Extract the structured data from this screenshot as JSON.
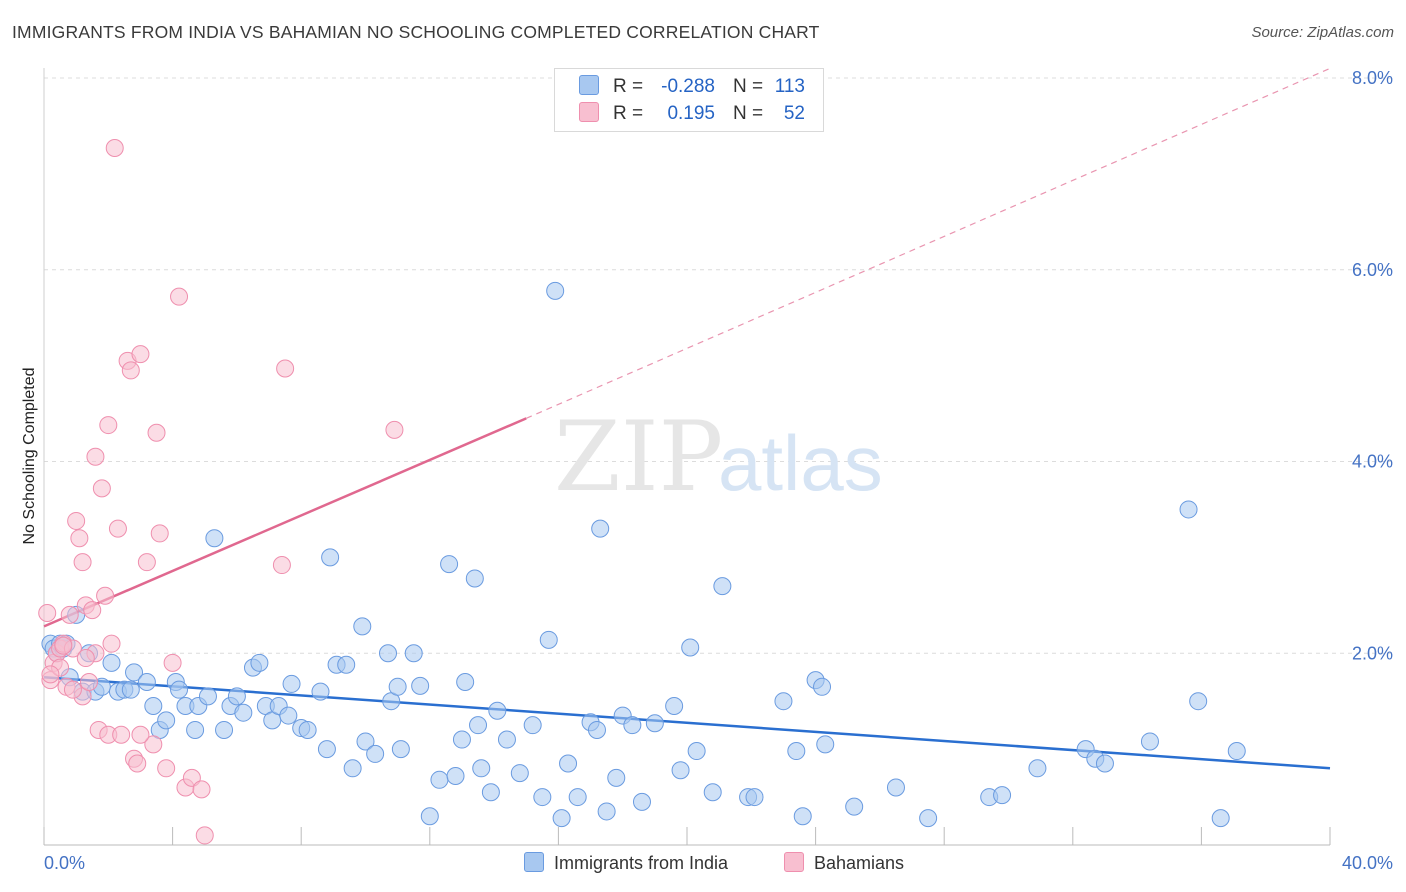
{
  "header": {
    "title": "IMMIGRANTS FROM INDIA VS BAHAMIAN NO SCHOOLING COMPLETED CORRELATION CHART",
    "source": "Source: ZipAtlas.com"
  },
  "legend": {
    "rows": [
      {
        "r_label": "R =",
        "r_value": "-0.288",
        "n_label": "N =",
        "n_value": "113"
      },
      {
        "r_label": "R =",
        "r_value": "0.195",
        "n_label": "N =",
        "n_value": "52"
      }
    ]
  },
  "bottom_legend": {
    "india_label": "Immigrants from India",
    "bahamians_label": "Bahamians"
  },
  "watermark": {
    "zip": "ZIP",
    "atlas": "atlas"
  },
  "colors": {
    "india_fill": "#a8c8f0",
    "india_stroke": "#6a9be0",
    "india_line": "#2a6fd0",
    "bahamian_fill": "#f8bfd0",
    "bahamian_stroke": "#ef8fae",
    "bahamian_line": "#e0688f",
    "tick": "#4472c4",
    "grid": "#dcdcdc"
  },
  "chart_data": {
    "type": "scatter",
    "title": "IMMIGRANTS FROM INDIA VS BAHAMIAN NO SCHOOLING COMPLETED CORRELATION CHART",
    "xlabel": "",
    "ylabel": "No Schooling Completed",
    "xlim": [
      0,
      40
    ],
    "ylim": [
      0,
      8
    ],
    "x_tick_labels": [
      "0.0%",
      "40.0%"
    ],
    "y_ticks": [
      2,
      4,
      6,
      8
    ],
    "y_tick_labels": [
      "2.0%",
      "4.0%",
      "6.0%",
      "8.0%"
    ],
    "grid": true,
    "legend_position": "top-center",
    "series": [
      {
        "name": "Immigrants from India",
        "trendline": {
          "x": [
            0,
            40
          ],
          "y": [
            1.75,
            0.8
          ],
          "dashed_extension": false
        },
        "points": [
          [
            0.2,
            2.1
          ],
          [
            0.3,
            2.05
          ],
          [
            0.4,
            2.0
          ],
          [
            0.5,
            2.1
          ],
          [
            0.6,
            2.05
          ],
          [
            0.7,
            2.1
          ],
          [
            0.8,
            1.75
          ],
          [
            1.0,
            2.4
          ],
          [
            1.2,
            1.6
          ],
          [
            1.4,
            2.0
          ],
          [
            1.6,
            1.6
          ],
          [
            1.8,
            1.65
          ],
          [
            2.1,
            1.9
          ],
          [
            2.3,
            1.6
          ],
          [
            2.5,
            1.62
          ],
          [
            2.7,
            1.62
          ],
          [
            2.8,
            1.8
          ],
          [
            3.2,
            1.7
          ],
          [
            3.4,
            1.45
          ],
          [
            3.6,
            1.2
          ],
          [
            3.8,
            1.3
          ],
          [
            4.1,
            1.7
          ],
          [
            4.2,
            1.62
          ],
          [
            4.4,
            1.45
          ],
          [
            4.7,
            1.2
          ],
          [
            4.8,
            1.45
          ],
          [
            5.1,
            1.55
          ],
          [
            5.3,
            3.2
          ],
          [
            5.6,
            1.2
          ],
          [
            5.8,
            1.45
          ],
          [
            6.0,
            1.55
          ],
          [
            6.2,
            1.38
          ],
          [
            6.5,
            1.85
          ],
          [
            6.7,
            1.9
          ],
          [
            6.9,
            1.45
          ],
          [
            7.1,
            1.3
          ],
          [
            7.3,
            1.45
          ],
          [
            7.6,
            1.35
          ],
          [
            7.7,
            1.68
          ],
          [
            8.0,
            1.22
          ],
          [
            8.2,
            1.2
          ],
          [
            8.6,
            1.6
          ],
          [
            8.8,
            1.0
          ],
          [
            8.9,
            3.0
          ],
          [
            9.1,
            1.88
          ],
          [
            9.4,
            1.88
          ],
          [
            9.6,
            0.8
          ],
          [
            9.9,
            2.28
          ],
          [
            10.0,
            1.08
          ],
          [
            10.3,
            0.95
          ],
          [
            10.7,
            2.0
          ],
          [
            10.8,
            1.5
          ],
          [
            11.0,
            1.65
          ],
          [
            11.1,
            1.0
          ],
          [
            11.5,
            2.0
          ],
          [
            11.7,
            1.66
          ],
          [
            12.0,
            0.3
          ],
          [
            12.3,
            0.68
          ],
          [
            12.6,
            2.93
          ],
          [
            12.8,
            0.72
          ],
          [
            13.0,
            1.1
          ],
          [
            13.1,
            1.7
          ],
          [
            13.4,
            2.78
          ],
          [
            13.5,
            1.25
          ],
          [
            13.6,
            0.8
          ],
          [
            13.9,
            0.55
          ],
          [
            14.1,
            1.4
          ],
          [
            14.4,
            1.1
          ],
          [
            14.8,
            0.75
          ],
          [
            15.2,
            1.25
          ],
          [
            15.5,
            0.5
          ],
          [
            15.7,
            2.14
          ],
          [
            16.1,
            0.28
          ],
          [
            16.3,
            0.85
          ],
          [
            16.6,
            0.5
          ],
          [
            17.0,
            1.28
          ],
          [
            17.2,
            1.2
          ],
          [
            17.3,
            3.3
          ],
          [
            17.5,
            0.35
          ],
          [
            17.8,
            0.7
          ],
          [
            18.0,
            1.35
          ],
          [
            18.3,
            1.25
          ],
          [
            18.6,
            0.45
          ],
          [
            19.0,
            1.27
          ],
          [
            19.6,
            1.45
          ],
          [
            19.8,
            0.78
          ],
          [
            20.1,
            2.06
          ],
          [
            20.3,
            0.98
          ],
          [
            20.8,
            0.55
          ],
          [
            21.1,
            2.7
          ],
          [
            21.9,
            0.5
          ],
          [
            22.1,
            0.5
          ],
          [
            23.0,
            1.5
          ],
          [
            23.4,
            0.98
          ],
          [
            24.0,
            1.72
          ],
          [
            24.2,
            1.65
          ],
          [
            23.6,
            0.3
          ],
          [
            24.3,
            1.05
          ],
          [
            25.2,
            0.4
          ],
          [
            26.5,
            0.6
          ],
          [
            27.5,
            0.28
          ],
          [
            29.4,
            0.5
          ],
          [
            29.8,
            0.52
          ],
          [
            30.9,
            0.8
          ],
          [
            32.4,
            1.0
          ],
          [
            32.7,
            0.9
          ],
          [
            33.0,
            0.85
          ],
          [
            34.4,
            1.08
          ],
          [
            35.6,
            3.5
          ],
          [
            35.9,
            1.5
          ],
          [
            36.6,
            0.28
          ],
          [
            37.1,
            0.98
          ],
          [
            15.9,
            5.78
          ]
        ]
      },
      {
        "name": "Bahamians",
        "trendline": {
          "x": [
            0,
            15
          ],
          "y": [
            2.28,
            4.45
          ],
          "dashed_extension": {
            "x": [
              15,
              40
            ],
            "y": [
              4.45,
              8.1
            ]
          }
        },
        "points": [
          [
            0.1,
            2.42
          ],
          [
            0.2,
            1.72
          ],
          [
            0.3,
            1.9
          ],
          [
            0.4,
            2.0
          ],
          [
            0.5,
            2.05
          ],
          [
            0.6,
            2.1
          ],
          [
            0.7,
            1.65
          ],
          [
            0.8,
            2.4
          ],
          [
            0.9,
            2.05
          ],
          [
            1.0,
            3.38
          ],
          [
            1.1,
            3.2
          ],
          [
            1.2,
            2.95
          ],
          [
            1.3,
            2.5
          ],
          [
            1.5,
            2.45
          ],
          [
            1.6,
            4.05
          ],
          [
            1.8,
            3.72
          ],
          [
            1.9,
            2.6
          ],
          [
            2.0,
            4.38
          ],
          [
            2.1,
            2.1
          ],
          [
            2.3,
            3.3
          ],
          [
            2.6,
            5.05
          ],
          [
            2.7,
            4.95
          ],
          [
            2.8,
            0.9
          ],
          [
            3.0,
            5.12
          ],
          [
            3.2,
            2.95
          ],
          [
            3.4,
            1.05
          ],
          [
            3.6,
            3.25
          ],
          [
            3.8,
            0.8
          ],
          [
            4.0,
            1.9
          ],
          [
            4.2,
            5.72
          ],
          [
            4.4,
            0.6
          ],
          [
            4.6,
            0.7
          ],
          [
            4.9,
            0.58
          ],
          [
            5.0,
            0.1
          ],
          [
            7.4,
            2.92
          ],
          [
            7.5,
            4.97
          ],
          [
            10.9,
            4.33
          ],
          [
            2.2,
            7.27
          ],
          [
            1.2,
            1.55
          ],
          [
            1.4,
            1.7
          ],
          [
            0.9,
            1.62
          ],
          [
            1.7,
            1.2
          ],
          [
            2.0,
            1.15
          ],
          [
            2.4,
            1.15
          ],
          [
            2.9,
            0.85
          ],
          [
            0.5,
            1.85
          ],
          [
            1.6,
            2.0
          ],
          [
            3.0,
            1.15
          ],
          [
            3.5,
            4.3
          ],
          [
            1.3,
            1.95
          ],
          [
            0.2,
            1.78
          ],
          [
            0.6,
            2.08
          ]
        ]
      }
    ]
  }
}
